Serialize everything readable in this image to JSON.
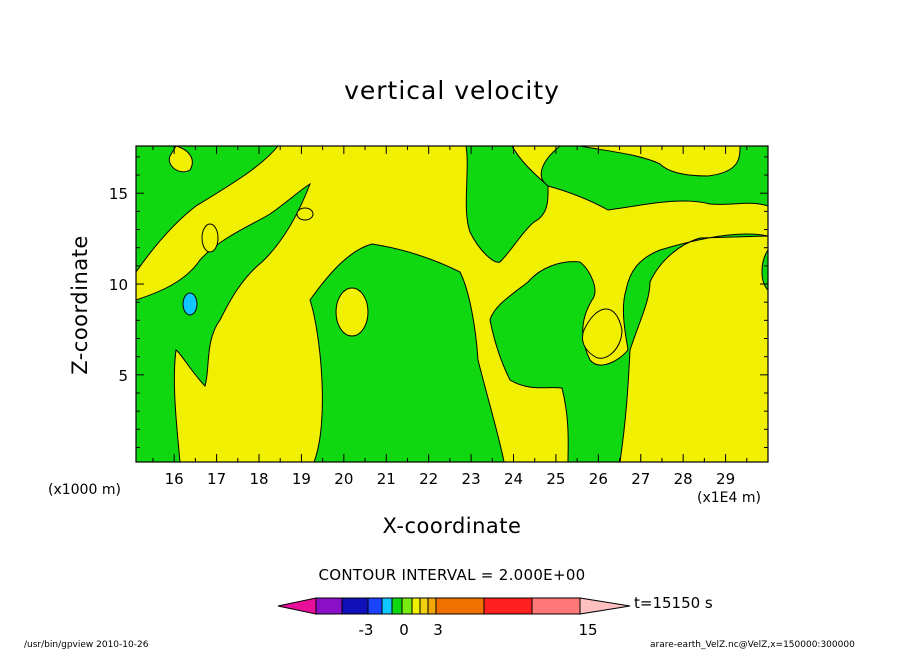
{
  "chart_data": {
    "type": "contour",
    "title": "vertical velocity",
    "xlabel": "X-coordinate",
    "ylabel": "Z-coordinate",
    "x_unit_left": "(x1000 m)",
    "x_unit_right": "(x1E4 m)",
    "x_ticks": [
      "16",
      "17",
      "18",
      "19",
      "20",
      "21",
      "22",
      "23",
      "24",
      "25",
      "26",
      "27",
      "28",
      "29"
    ],
    "xlim": [
      15.1,
      30
    ],
    "y_ticks": [
      "5",
      "10",
      "15"
    ],
    "ylim": [
      0.2,
      17.6
    ],
    "contour_interval_text": "CONTOUR INTERVAL = 2.000E+00",
    "time_text": "t=15150 s",
    "colorbar": {
      "labels": [
        "-3",
        "0",
        "3",
        "15"
      ],
      "colors": [
        "#e8109a",
        "#8a10c8",
        "#1010b8",
        "#1a44ff",
        "#10c8ff",
        "#10d810",
        "#78ec10",
        "#f0f000",
        "#f0d010",
        "#f0a808",
        "#f07000",
        "#ff2020",
        "#ff7878",
        "#ffc0c0"
      ]
    },
    "fill_colors": {
      "yellow": "#f0f000",
      "green": "#10d810",
      "cyan": "#10c8ff"
    }
  },
  "footer": {
    "left": "/usr/bin/gpview   2010-10-26",
    "right": "arare-earth_VelZ.nc@VelZ,x=150000:300000"
  }
}
